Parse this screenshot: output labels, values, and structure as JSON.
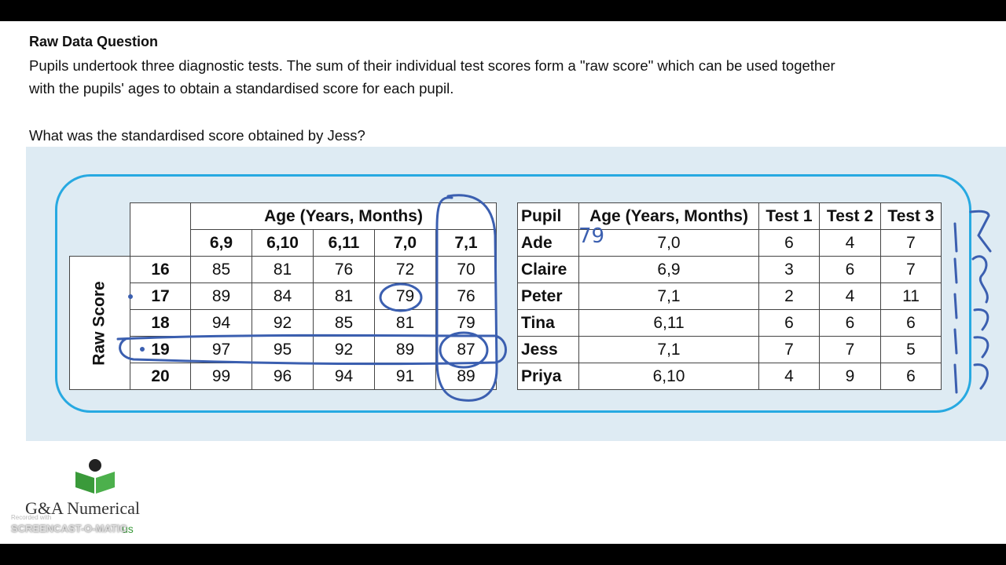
{
  "document": {
    "title": "Raw Data Question",
    "paragraph_lines": [
      "Pupils undertook three diagnostic tests.  The sum of their individual test scores form a \"raw score\" which can be used together",
      "with the pupils' ages to obtain a standardised score for each pupil."
    ],
    "question": "What was the standardised score obtained by Jess?"
  },
  "score_table": {
    "group_header": "Age (Years, Months)",
    "row_group_header": "Raw Score",
    "columns": [
      "6,9",
      "6,10",
      "6,11",
      "7,0",
      "7,1"
    ],
    "rows": [
      {
        "raw_score": 16,
        "values": [
          85,
          81,
          76,
          72,
          70
        ]
      },
      {
        "raw_score": 17,
        "values": [
          89,
          84,
          81,
          79,
          76
        ]
      },
      {
        "raw_score": 18,
        "values": [
          94,
          92,
          85,
          81,
          79
        ]
      },
      {
        "raw_score": 19,
        "values": [
          97,
          95,
          92,
          89,
          87
        ]
      },
      {
        "raw_score": 20,
        "values": [
          99,
          96,
          94,
          91,
          89
        ]
      }
    ]
  },
  "pupil_table": {
    "headers": [
      "Pupil",
      "Age (Years, Months)",
      "Test 1",
      "Test 2",
      "Test 3"
    ],
    "rows": [
      [
        "Ade",
        "7,0",
        6,
        4,
        7
      ],
      [
        "Claire",
        "6,9",
        3,
        6,
        7
      ],
      [
        "Peter",
        "7,1",
        2,
        4,
        11
      ],
      [
        "Tina",
        "6,11",
        6,
        6,
        6
      ],
      [
        "Jess",
        "7,1",
        7,
        7,
        5
      ],
      [
        "Priya",
        "6,10",
        4,
        9,
        6
      ]
    ]
  },
  "annotations": {
    "handwritten": "79"
  },
  "logo": {
    "name": "G&A Numerical",
    "tagline": "us"
  },
  "watermark": {
    "line1": "Recorded with",
    "line2": "SCREENCAST-O-MATIC"
  }
}
